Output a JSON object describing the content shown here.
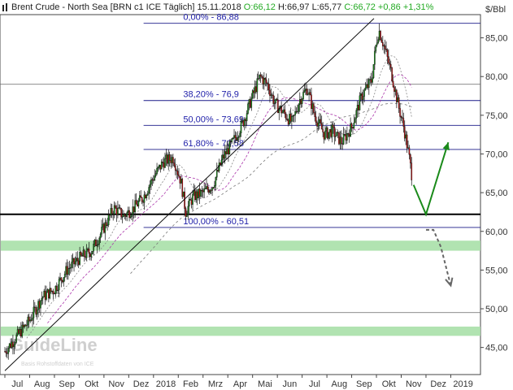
{
  "header": {
    "instrument": "Brent Crude - North Sea [BRN c1 ICE  Täglich]",
    "date": "15.11.2018",
    "open": "O:66,12",
    "high": "H:66,97",
    "low": "L:65,77",
    "close": "C:66,72",
    "change": "+0,86",
    "change_pct": "+1,31%"
  },
  "unit_label": "$/Bbl",
  "watermark": {
    "logo": "GuideLine",
    "source": "Basis Rohstoffdaten von ICE"
  },
  "colors": {
    "up_candle": "#1a9a1a",
    "down_candle": "#cc1111",
    "fib_line": "#1a1a88",
    "fib_text": "#2222aa",
    "support_zone": "#a8e0a8",
    "arrow_green": "#1a8a1a",
    "arrow_gray": "#666666",
    "ma_dark": "#888888",
    "ma_purple": "#aa33aa"
  },
  "chart_data": {
    "type": "candlestick",
    "title": "Brent Crude - North Sea [BRN c1 ICE  Täglich]",
    "ylabel": "$/Bbl",
    "ylim": [
      41.5,
      88.0
    ],
    "y_ticks": [
      45,
      50,
      55,
      60,
      65,
      70,
      75,
      80,
      85
    ],
    "y_tick_labels": [
      "45,00",
      "50,00",
      "55,00",
      "60,00",
      "65,00",
      "70,00",
      "75,00",
      "80,00",
      "85,00"
    ],
    "x_labels": [
      "Jul",
      "Aug",
      "Sep",
      "Okt",
      "Nov",
      "Dez",
      "2018",
      "Feb",
      "Mrz",
      "Apr",
      "Mai",
      "Jun",
      "Jul",
      "Aug",
      "Sep",
      "Okt",
      "Nov",
      "Dez",
      "2019"
    ],
    "x_label_months": [
      0,
      1,
      2,
      3,
      4,
      5,
      6,
      7,
      8,
      9,
      10,
      11,
      12,
      13,
      14,
      15,
      16,
      17,
      18
    ],
    "start": "2017-06-20",
    "last_bar": {
      "date": "2018-11-15",
      "open": 66.12,
      "high": 66.97,
      "low": 65.77,
      "close": 66.72
    },
    "close_path": [
      {
        "m": 0.0,
        "v": 44.5
      },
      {
        "m": 0.5,
        "v": 46.5
      },
      {
        "m": 1.0,
        "v": 48.5
      },
      {
        "m": 1.5,
        "v": 51.5
      },
      {
        "m": 2.0,
        "v": 52.5
      },
      {
        "m": 2.5,
        "v": 55.0
      },
      {
        "m": 3.0,
        "v": 56.5
      },
      {
        "m": 3.5,
        "v": 57.5
      },
      {
        "m": 4.0,
        "v": 60.5
      },
      {
        "m": 4.4,
        "v": 63.0
      },
      {
        "m": 4.8,
        "v": 62.0
      },
      {
        "m": 5.2,
        "v": 63.0
      },
      {
        "m": 5.6,
        "v": 64.5
      },
      {
        "m": 6.0,
        "v": 67.0
      },
      {
        "m": 6.4,
        "v": 69.0
      },
      {
        "m": 6.8,
        "v": 69.5
      },
      {
        "m": 7.1,
        "v": 66.5
      },
      {
        "m": 7.3,
        "v": 62.5
      },
      {
        "m": 7.6,
        "v": 64.5
      },
      {
        "m": 8.0,
        "v": 65.0
      },
      {
        "m": 8.4,
        "v": 66.0
      },
      {
        "m": 8.8,
        "v": 69.5
      },
      {
        "m": 9.2,
        "v": 71.5
      },
      {
        "m": 9.6,
        "v": 74.0
      },
      {
        "m": 10.0,
        "v": 77.5
      },
      {
        "m": 10.3,
        "v": 80.0
      },
      {
        "m": 10.6,
        "v": 79.0
      },
      {
        "m": 10.9,
        "v": 76.5
      },
      {
        "m": 11.2,
        "v": 75.5
      },
      {
        "m": 11.6,
        "v": 74.0
      },
      {
        "m": 11.9,
        "v": 77.0
      },
      {
        "m": 12.2,
        "v": 78.5
      },
      {
        "m": 12.5,
        "v": 75.0
      },
      {
        "m": 12.9,
        "v": 72.5
      },
      {
        "m": 13.2,
        "v": 73.0
      },
      {
        "m": 13.6,
        "v": 71.5
      },
      {
        "m": 14.0,
        "v": 73.5
      },
      {
        "m": 14.4,
        "v": 77.5
      },
      {
        "m": 14.8,
        "v": 79.5
      },
      {
        "m": 15.0,
        "v": 84.5
      },
      {
        "m": 15.1,
        "v": 86.0
      },
      {
        "m": 15.3,
        "v": 84.0
      },
      {
        "m": 15.6,
        "v": 80.5
      },
      {
        "m": 15.9,
        "v": 76.0
      },
      {
        "m": 16.1,
        "v": 73.5
      },
      {
        "m": 16.3,
        "v": 70.0
      },
      {
        "m": 16.45,
        "v": 66.72
      }
    ],
    "fibonacci": [
      {
        "label": "0,00% - 86,88",
        "value": 86.88
      },
      {
        "label": "38,20% - 76,9",
        "value": 76.9
      },
      {
        "label": "50,00% - 73,69",
        "value": 73.69
      },
      {
        "label": "61,80% - 70,58",
        "value": 70.58
      },
      {
        "label": "100,00% - 60,51",
        "value": 60.51
      }
    ],
    "horizontal_lines": [
      62.2,
      79.0,
      49.5
    ],
    "support_zones": [
      [
        57.5,
        58.8
      ],
      [
        46.5,
        47.7
      ]
    ],
    "trendline": [
      {
        "m": 0.0,
        "v": 42.0
      },
      {
        "m": 14.9,
        "v": 87.5
      }
    ],
    "arrow_green": [
      {
        "m": 16.5,
        "v": 66.0
      },
      {
        "m": 17.0,
        "v": 62.2
      },
      {
        "m": 17.9,
        "v": 71.5
      }
    ],
    "arrow_gray": [
      {
        "m": 17.0,
        "v": 60.2
      },
      {
        "m": 17.3,
        "v": 60.2
      },
      {
        "m": 17.6,
        "v": 58.0
      },
      {
        "m": 18.0,
        "v": 53.0
      }
    ],
    "moving_averages": [
      "ma_dark",
      "ma_purple",
      "ma_long"
    ]
  }
}
